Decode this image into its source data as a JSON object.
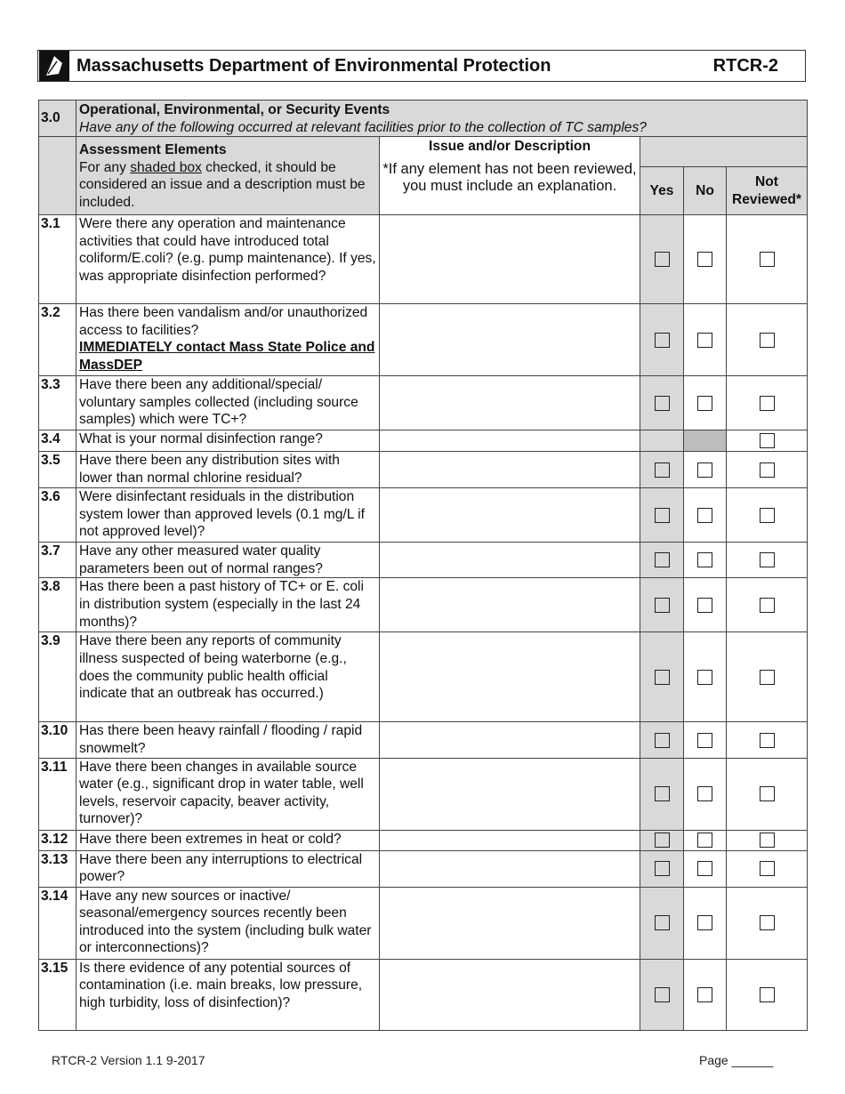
{
  "header": {
    "title": "Massachusetts Department of Environmental Protection",
    "code": "RTCR-2"
  },
  "section": {
    "number": "3.0",
    "title": "Operational, Environmental, or Security Events",
    "subtitle": "Have any of the following occurred at relevant facilities prior to the collection of TC samples?"
  },
  "columns": {
    "assessment": "Assessment Elements",
    "assessment_note_pre": "For any ",
    "assessment_note_u": "shaded box",
    "assessment_note_post": " checked, it should be considered an issue and a description must be included.",
    "issue": "Issue and/or Description",
    "issue_note": "*If any element has not been reviewed, you must include an explanation.",
    "yes": "Yes",
    "no": "No",
    "not_reviewed": "Not Reviewed*"
  },
  "rows": [
    {
      "num": "3.1",
      "text": "Were there any operation and maintenance activities that could have introduced total coliform/E.coli?  (e.g. pump maintenance). If yes, was appropriate disinfection performed?"
    },
    {
      "num": "3.2",
      "text": "Has there been vandalism and/or unauthorized access to facilities?",
      "bold": "IMMEDIATELY contact Mass State Police and MassDEP"
    },
    {
      "num": "3.3",
      "text": "Have there been any additional/special/ voluntary samples collected (including source samples) which were TC+?"
    },
    {
      "num": "3.4",
      "text": "What is your normal disinfection range?"
    },
    {
      "num": "3.5",
      "text": "Have there been any distribution sites with lower than normal chlorine residual?"
    },
    {
      "num": "3.6",
      "text": "Were disinfectant residuals in the distribution system lower than approved levels (0.1 mg/L if not approved level)?"
    },
    {
      "num": "3.7",
      "text": "Have any other measured water quality parameters been out of normal ranges?"
    },
    {
      "num": "3.8",
      "text": "Has there been a past history of TC+ or E. coli in distribution system (especially in the last 24 months)?"
    },
    {
      "num": "3.9",
      "text": "Have there been any reports of community illness suspected of being waterborne (e.g., does the community public health official indicate that an outbreak has occurred.)"
    },
    {
      "num": "3.10",
      "text": "Has there been heavy rainfall / flooding / rapid snowmelt?"
    },
    {
      "num": "3.11",
      "text": "Have there been changes in available source water (e.g., significant drop in water table, well levels, reservoir capacity, beaver activity, turnover)?"
    },
    {
      "num": "3.12",
      "text": "Have there been extremes in heat or cold?"
    },
    {
      "num": "3.13",
      "text": "Have there been any interruptions to electrical power?"
    },
    {
      "num": "3.14",
      "text": "Have any new sources or inactive/ seasonal/emergency sources recently been introduced into the system (including bulk water or interconnections)?"
    },
    {
      "num": "3.15",
      "text": "Is there evidence of any potential sources of contamination (i.e. main breaks, low pressure, high turbidity, loss of disinfection)?"
    }
  ],
  "footer": {
    "version": "RTCR-2 Version 1.1 9-2017",
    "page": "Page ______"
  }
}
